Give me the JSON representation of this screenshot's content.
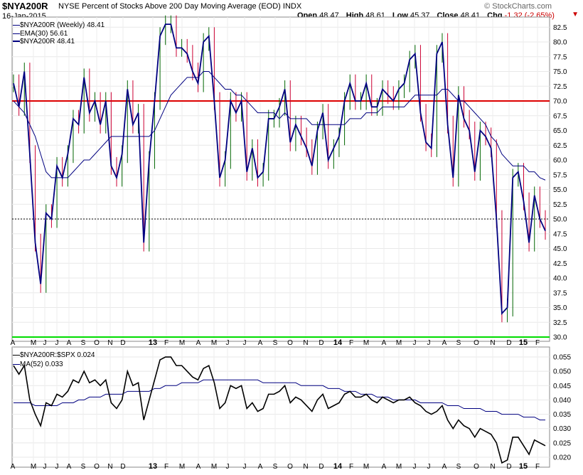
{
  "header": {
    "symbol": "$NYA200R",
    "title": "NYSE Percent of Stocks Above 200 Day Moving Average (EOD)",
    "exchange": "INDX",
    "date": "16-Jan-2015",
    "open_label": "Open",
    "open": "48.47",
    "high_label": "High",
    "high": "48.61",
    "low_label": "Low",
    "low": "45.37",
    "close_label": "Close",
    "close": "48.41",
    "chg_label": "Chg",
    "chg": "-1.32 (-2.65%)",
    "brand": "© StockCharts.com",
    "menu_icon": "dropdown-triangle-icon"
  },
  "colors": {
    "price": "#000080",
    "ema": "#000080",
    "up_bar": "#006600",
    "down_bar": "#cc0033",
    "resistance": "#dd0000",
    "support": "#00dd00",
    "ratio": "#000000",
    "ma": "#000080"
  },
  "chart_data": [
    {
      "type": "line",
      "title": "$NYA200R (Weekly) 48.41",
      "legend": [
        {
          "name": "$NYA200R (Weekly) 48.41"
        },
        {
          "name": "EMA(30) 56.61"
        },
        {
          "name": "$NYA200R 48.41"
        }
      ],
      "ylim": [
        30,
        83.5
      ],
      "y_ticks": [
        "82.5",
        "80.0",
        "77.5",
        "75.0",
        "72.5",
        "70.0",
        "67.5",
        "65.0",
        "62.5",
        "60.0",
        "57.5",
        "55.0",
        "52.5",
        "50.0",
        "47.5",
        "45.0",
        "42.5",
        "40.0",
        "37.5",
        "35.0",
        "32.5",
        "30.0"
      ],
      "x_labels": [
        "A",
        "M",
        "J",
        "J",
        "A",
        "S",
        "O",
        "N",
        "D",
        "13",
        "F",
        "M",
        "A",
        "M",
        "J",
        "J",
        "A",
        "S",
        "O",
        "N",
        "D",
        "14",
        "F",
        "M",
        "A",
        "M",
        "J",
        "J",
        "A",
        "S",
        "O",
        "N",
        "D",
        "15",
        "F"
      ],
      "reference_lines": [
        {
          "y": 70,
          "color": "red"
        },
        {
          "y": 50,
          "style": "dotted"
        },
        {
          "y": 30,
          "color": "green"
        }
      ],
      "series": [
        {
          "name": "$NYA200R",
          "values": [
            73,
            69,
            75,
            61,
            46,
            39,
            51,
            50,
            59,
            57,
            61,
            67,
            66,
            74,
            68,
            70,
            66,
            70,
            59,
            57,
            61,
            72,
            66,
            68,
            46,
            60,
            70,
            81,
            83,
            83,
            79,
            79,
            78,
            75,
            73,
            80,
            81,
            70,
            57,
            60,
            70,
            68,
            70,
            58,
            62,
            57,
            58,
            67,
            67,
            69,
            72,
            63,
            66,
            64,
            62,
            59,
            65,
            68,
            60,
            62,
            64,
            70,
            73,
            70,
            70,
            73,
            69,
            69,
            72,
            71,
            70,
            72,
            73,
            77,
            78,
            68,
            63,
            62,
            78,
            80,
            66,
            57,
            71,
            67,
            65,
            58,
            65,
            64,
            62,
            50,
            34,
            35,
            57,
            58,
            53,
            46,
            54,
            50,
            48
          ]
        },
        {
          "name": "EMA(30)",
          "values": [
            70,
            69,
            68,
            66,
            64,
            61,
            58,
            57,
            57,
            57,
            57,
            58,
            59,
            60,
            60,
            61,
            62,
            63,
            64,
            64,
            64,
            64,
            64,
            64,
            64,
            64,
            65,
            67,
            69,
            71,
            72,
            73,
            74,
            74,
            74,
            75,
            75,
            74,
            73,
            72,
            72,
            71,
            71,
            70,
            69,
            68,
            68,
            68,
            68,
            67,
            68,
            67,
            67,
            67,
            67,
            66,
            66,
            66,
            66,
            66,
            66,
            66,
            67,
            67,
            67,
            68,
            68,
            68,
            69,
            69,
            69,
            69,
            69,
            70,
            71,
            71,
            71,
            71,
            71,
            72,
            72,
            71,
            70,
            70,
            69,
            68,
            67,
            66,
            64,
            63,
            61,
            60,
            59,
            59,
            59,
            58,
            58,
            57,
            56.6
          ]
        }
      ]
    },
    {
      "type": "line",
      "title": "$NYA200R:$SPX 0.024",
      "legend": [
        {
          "name": "$NYA200R:$SPX 0.024"
        },
        {
          "name": "MA(52) 0.033"
        }
      ],
      "ylim": [
        0.018,
        0.057
      ],
      "y_ticks": [
        "0.055",
        "0.050",
        "0.045",
        "0.040",
        "0.035",
        "0.030",
        "0.025",
        "0.020"
      ],
      "x_labels": [
        "A",
        "M",
        "J",
        "J",
        "A",
        "S",
        "O",
        "N",
        "D",
        "13",
        "F",
        "M",
        "A",
        "M",
        "J",
        "J",
        "A",
        "S",
        "O",
        "N",
        "D",
        "14",
        "F",
        "M",
        "A",
        "M",
        "J",
        "J",
        "A",
        "S",
        "O",
        "N",
        "D",
        "15",
        "F"
      ],
      "series": [
        {
          "name": "$NYA200R:$SPX",
          "values": [
            0.052,
            0.049,
            0.052,
            0.04,
            0.035,
            0.031,
            0.039,
            0.038,
            0.042,
            0.041,
            0.043,
            0.047,
            0.046,
            0.05,
            0.046,
            0.047,
            0.045,
            0.047,
            0.039,
            0.037,
            0.04,
            0.05,
            0.045,
            0.046,
            0.033,
            0.04,
            0.047,
            0.054,
            0.055,
            0.055,
            0.052,
            0.052,
            0.05,
            0.048,
            0.047,
            0.051,
            0.052,
            0.046,
            0.037,
            0.039,
            0.045,
            0.044,
            0.045,
            0.037,
            0.039,
            0.036,
            0.037,
            0.042,
            0.042,
            0.043,
            0.045,
            0.039,
            0.041,
            0.04,
            0.038,
            0.036,
            0.04,
            0.042,
            0.037,
            0.038,
            0.039,
            0.042,
            0.043,
            0.041,
            0.041,
            0.042,
            0.04,
            0.039,
            0.041,
            0.04,
            0.039,
            0.04,
            0.04,
            0.041,
            0.039,
            0.038,
            0.036,
            0.035,
            0.036,
            0.038,
            0.033,
            0.03,
            0.033,
            0.031,
            0.03,
            0.027,
            0.03,
            0.029,
            0.028,
            0.025,
            0.018,
            0.019,
            0.027,
            0.027,
            0.024,
            0.021,
            0.026,
            0.025,
            0.024
          ]
        },
        {
          "name": "MA(52)",
          "values": [
            0.039,
            0.039,
            0.039,
            0.039,
            0.038,
            0.038,
            0.038,
            0.038,
            0.038,
            0.039,
            0.039,
            0.039,
            0.04,
            0.04,
            0.041,
            0.041,
            0.041,
            0.042,
            0.042,
            0.042,
            0.042,
            0.043,
            0.043,
            0.043,
            0.043,
            0.043,
            0.044,
            0.044,
            0.045,
            0.045,
            0.045,
            0.046,
            0.046,
            0.046,
            0.046,
            0.047,
            0.047,
            0.047,
            0.047,
            0.047,
            0.047,
            0.047,
            0.047,
            0.047,
            0.047,
            0.047,
            0.046,
            0.046,
            0.046,
            0.046,
            0.046,
            0.046,
            0.046,
            0.045,
            0.045,
            0.045,
            0.045,
            0.045,
            0.044,
            0.044,
            0.044,
            0.043,
            0.043,
            0.043,
            0.042,
            0.042,
            0.042,
            0.041,
            0.041,
            0.041,
            0.04,
            0.04,
            0.04,
            0.04,
            0.04,
            0.039,
            0.039,
            0.039,
            0.039,
            0.039,
            0.038,
            0.038,
            0.038,
            0.037,
            0.037,
            0.037,
            0.037,
            0.036,
            0.036,
            0.036,
            0.035,
            0.035,
            0.035,
            0.035,
            0.034,
            0.034,
            0.034,
            0.033,
            0.033
          ]
        }
      ]
    }
  ]
}
